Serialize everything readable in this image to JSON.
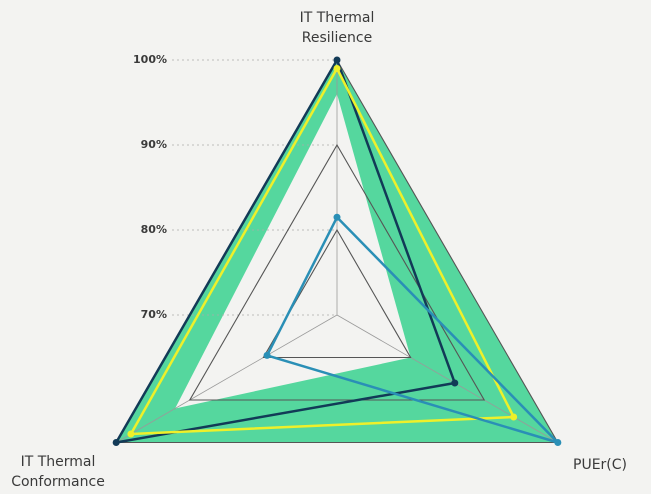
{
  "chart_data": {
    "type": "radar",
    "axes": [
      [
        "IT Thermal",
        "Resilience"
      ],
      [
        "PUEr(C)"
      ],
      [
        "IT Thermal",
        "Conformance"
      ]
    ],
    "rlim": [
      70,
      100
    ],
    "rticks": [
      {
        "value": 70,
        "label": "70%"
      },
      {
        "value": 80,
        "label": "80%"
      },
      {
        "value": 90,
        "label": "90%"
      },
      {
        "value": 100,
        "label": "100%"
      }
    ],
    "band": {
      "color": "#55d79e",
      "outer": [
        100,
        100,
        100
      ],
      "inner": [
        96,
        80,
        92
      ]
    },
    "series": [
      {
        "color": "#123a57",
        "values": [
          100,
          86,
          100
        ]
      },
      {
        "color": "#eef02a",
        "values": [
          99,
          94,
          98
        ]
      },
      {
        "color": "#2a8fb6",
        "values": [
          81.5,
          100,
          79.5
        ]
      }
    ]
  }
}
